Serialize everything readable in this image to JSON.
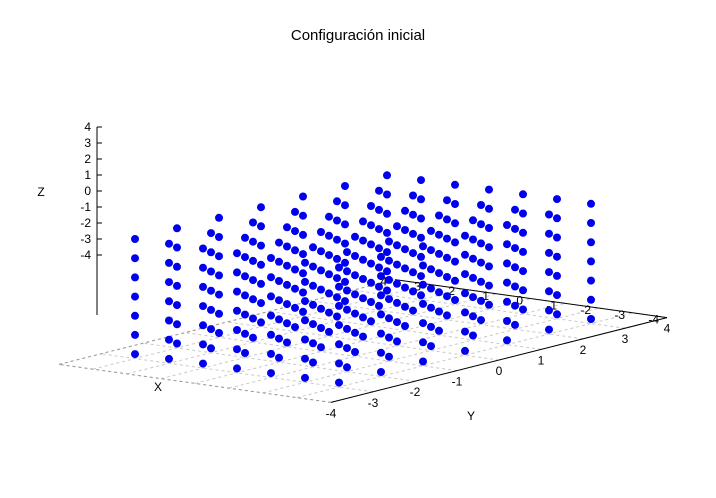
{
  "chart_data": {
    "type": "scatter",
    "projection": "3d",
    "title": "Configuración inicial",
    "xlabel": "X",
    "ylabel": "Y",
    "zlabel": "Z",
    "xlim": [
      -4,
      4
    ],
    "ylim": [
      -4,
      4
    ],
    "zlim": [
      -4,
      4
    ],
    "x_ticks": [
      "4",
      "3",
      "2",
      "1",
      "0",
      "-1",
      "-2",
      "-3",
      "-4"
    ],
    "y_ticks": [
      "4",
      "3",
      "2",
      "1",
      "0",
      "-1",
      "-2",
      "-3",
      "-4"
    ],
    "z_ticks": [
      "4",
      "3",
      "2",
      "1",
      "0",
      "-1",
      "-2",
      "-3",
      "-4"
    ],
    "grid": true,
    "point_color": "#0000ee",
    "points": {
      "x_values": [
        -3,
        -2,
        -1,
        0,
        1,
        2,
        3
      ],
      "y_values": [
        -3,
        -2,
        -1,
        0,
        1,
        2,
        3
      ],
      "z_values": [
        -3,
        -2,
        -1,
        0,
        1,
        2,
        3
      ],
      "arrangement": "cubic grid, all combinations of x_values × y_values × z_values"
    }
  }
}
